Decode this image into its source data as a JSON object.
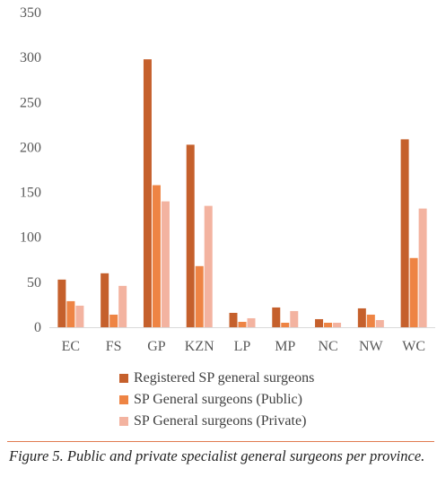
{
  "chart_data": {
    "type": "bar",
    "categories": [
      "EC",
      "FS",
      "GP",
      "KZN",
      "LP",
      "MP",
      "NC",
      "NW",
      "WC"
    ],
    "series": [
      {
        "name": "Registered SP general surgeons",
        "color": "#c5602c",
        "values": [
          53,
          60,
          298,
          203,
          16,
          22,
          9,
          21,
          209
        ]
      },
      {
        "name": "SP General surgeons (Public)",
        "color": "#ee8444",
        "values": [
          29,
          14,
          158,
          68,
          6,
          5,
          5,
          14,
          77
        ]
      },
      {
        "name": "SP General surgeons (Private)",
        "color": "#f3b3a0",
        "values": [
          24,
          46,
          140,
          135,
          10,
          18,
          5,
          8,
          132
        ]
      }
    ],
    "ylim": [
      0,
      350
    ],
    "yticks": [
      0,
      50,
      100,
      150,
      200,
      250,
      300,
      350
    ],
    "grid": false,
    "legend": "bottom"
  },
  "caption": "Figure 5. Public and private specialist general surgeons per province."
}
